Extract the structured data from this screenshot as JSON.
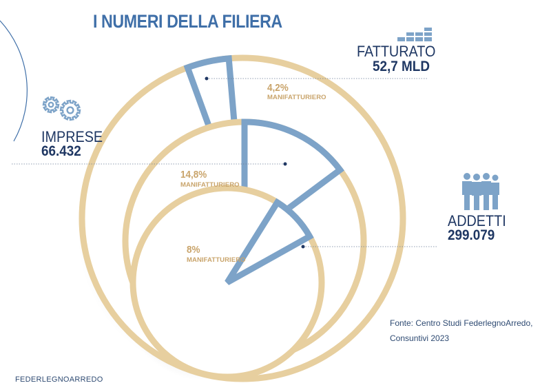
{
  "title": "I NUMERI DELLA FILIERA",
  "brand": "FEDERLEGNOARREDO",
  "source_line1": "Fonte: Centro Studi FederlegnoArredo,",
  "source_line2": "Consuntivi 2023",
  "colors": {
    "ring": "#e7cf9f",
    "segment": "#7da3c8",
    "title": "#3f6fa8",
    "navy": "#1f3763",
    "gold": "#c9a46b"
  },
  "chart_data": {
    "type": "pie",
    "title": "I NUMERI DELLA FILIERA",
    "series": [
      {
        "name": "FATTURATO",
        "total_label": "52,7 MLD",
        "share_label": "4,2%",
        "segment_label": "MANIFATTURIERO",
        "share": 4.2,
        "icon": "bar-stack-icon"
      },
      {
        "name": "IMPRESE",
        "total_label": "66.432",
        "share_label": "14,8%",
        "segment_label": "MANIFATTURIERO",
        "share": 14.8,
        "icon": "gears-icon"
      },
      {
        "name": "ADDETTI",
        "total_label": "299.079",
        "share_label": "8%",
        "segment_label": "MANIFATTURIERO",
        "share": 8,
        "icon": "people-icon"
      }
    ]
  }
}
